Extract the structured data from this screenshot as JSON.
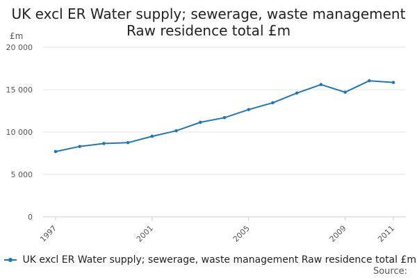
{
  "chart_data": {
    "type": "line",
    "title_lines": [
      "UK excl ER Water supply; sewerage, waste management",
      "Raw residence total £m"
    ],
    "ylabel": "£m",
    "ylim": [
      0,
      20000
    ],
    "yticks": [
      0,
      5000,
      10000,
      15000,
      20000
    ],
    "ytick_labels": [
      "0",
      "5 000",
      "10 000",
      "15 000",
      "20 000"
    ],
    "xlim": [
      1997,
      2011
    ],
    "xticks": [
      1997,
      2001,
      2005,
      2009,
      2011
    ],
    "xtick_labels": [
      "1997",
      "2001",
      "2005",
      "2009",
      "2011"
    ],
    "grid": true,
    "series": [
      {
        "name": "UK excl ER Water supply; sewerage, waste management Raw residence total £m",
        "color": "#1f77b4",
        "x": [
          1997,
          1998,
          1999,
          2000,
          2001,
          2002,
          2003,
          2004,
          2005,
          2006,
          2007,
          2008,
          2009,
          2010,
          2011
        ],
        "values": [
          7700,
          8300,
          8650,
          8750,
          9500,
          10150,
          11150,
          11700,
          12650,
          13450,
          14600,
          15600,
          14700,
          16050,
          15850
        ]
      }
    ]
  },
  "legend": {
    "label": "UK excl ER Water supply; sewerage, waste management Raw residence total £m"
  },
  "source": "Source:"
}
